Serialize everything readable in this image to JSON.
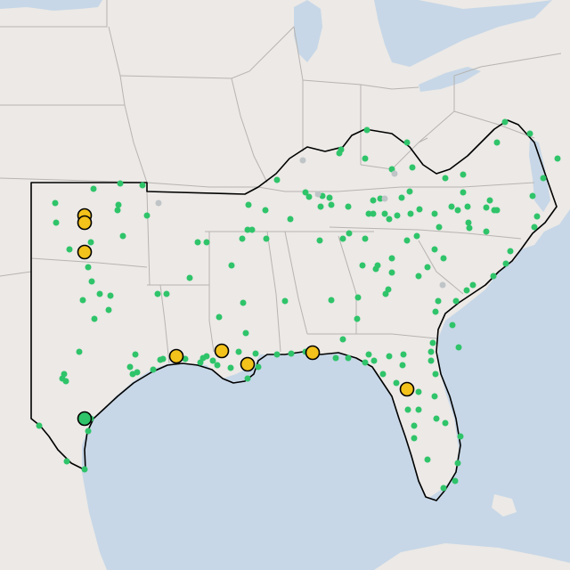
{
  "map": {
    "colors": {
      "land": "#ece9e6",
      "water": "#c7d7e7",
      "state_border": "#b7b4b1",
      "region_outline": "#000000",
      "green_marker": "#2fc46a",
      "gray_marker": "#bfc4c7",
      "yellow_marker_fill": "#f3c21b",
      "yellow_marker_stroke": "#000000",
      "green_highlight_fill": "#2fc46a",
      "green_highlight_stroke": "#000000"
    },
    "icons": {
      "green_marker": "green-circle-icon",
      "gray_marker": "gray-circle-icon",
      "yellow_marker": "yellow-circle-icon",
      "highlight_marker": "highlight-circle-icon"
    }
  }
}
